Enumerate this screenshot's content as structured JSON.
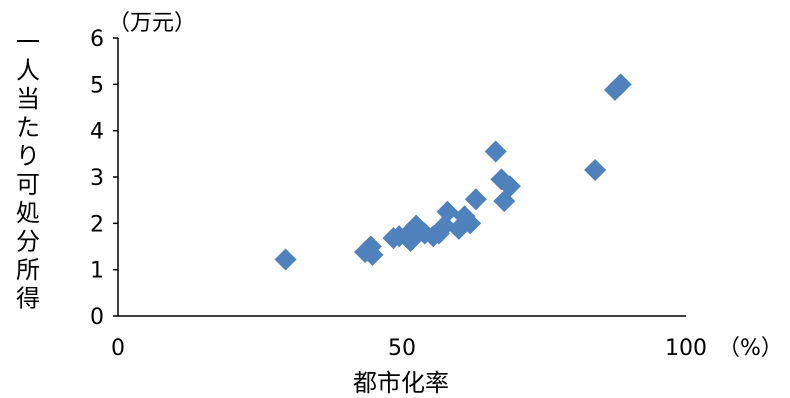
{
  "chart_data": {
    "type": "scatter",
    "title": "",
    "xlabel": "都市化率",
    "ylabel": "一人当たり可処分所得",
    "x_unit": "（%）",
    "y_unit": "（万元）",
    "xlim": [
      0,
      100
    ],
    "ylim": [
      0,
      6
    ],
    "x_ticks": [
      0,
      50,
      100
    ],
    "y_ticks": [
      0,
      1,
      2,
      3,
      4,
      5,
      6
    ],
    "grid": false,
    "legend": "none",
    "marker": "diamond",
    "series": [
      {
        "color": "#4F81BD",
        "points": [
          [
            29.5,
            1.22
          ],
          [
            43.5,
            1.38
          ],
          [
            44.5,
            1.5
          ],
          [
            44.8,
            1.32
          ],
          [
            48.5,
            1.68
          ],
          [
            49.5,
            1.72
          ],
          [
            51.5,
            1.62
          ],
          [
            52.0,
            1.88
          ],
          [
            52.5,
            1.95
          ],
          [
            54.0,
            1.78
          ],
          [
            55.5,
            1.72
          ],
          [
            56.5,
            1.78
          ],
          [
            57.5,
            1.95
          ],
          [
            58.0,
            2.25
          ],
          [
            60.0,
            1.88
          ],
          [
            61.0,
            2.15
          ],
          [
            62.0,
            2.0
          ],
          [
            63.0,
            2.52
          ],
          [
            66.5,
            3.55
          ],
          [
            67.5,
            2.95
          ],
          [
            68.0,
            2.48
          ],
          [
            69.0,
            2.8
          ],
          [
            84.0,
            3.15
          ],
          [
            87.5,
            4.88
          ],
          [
            88.5,
            5.0
          ]
        ]
      }
    ]
  }
}
